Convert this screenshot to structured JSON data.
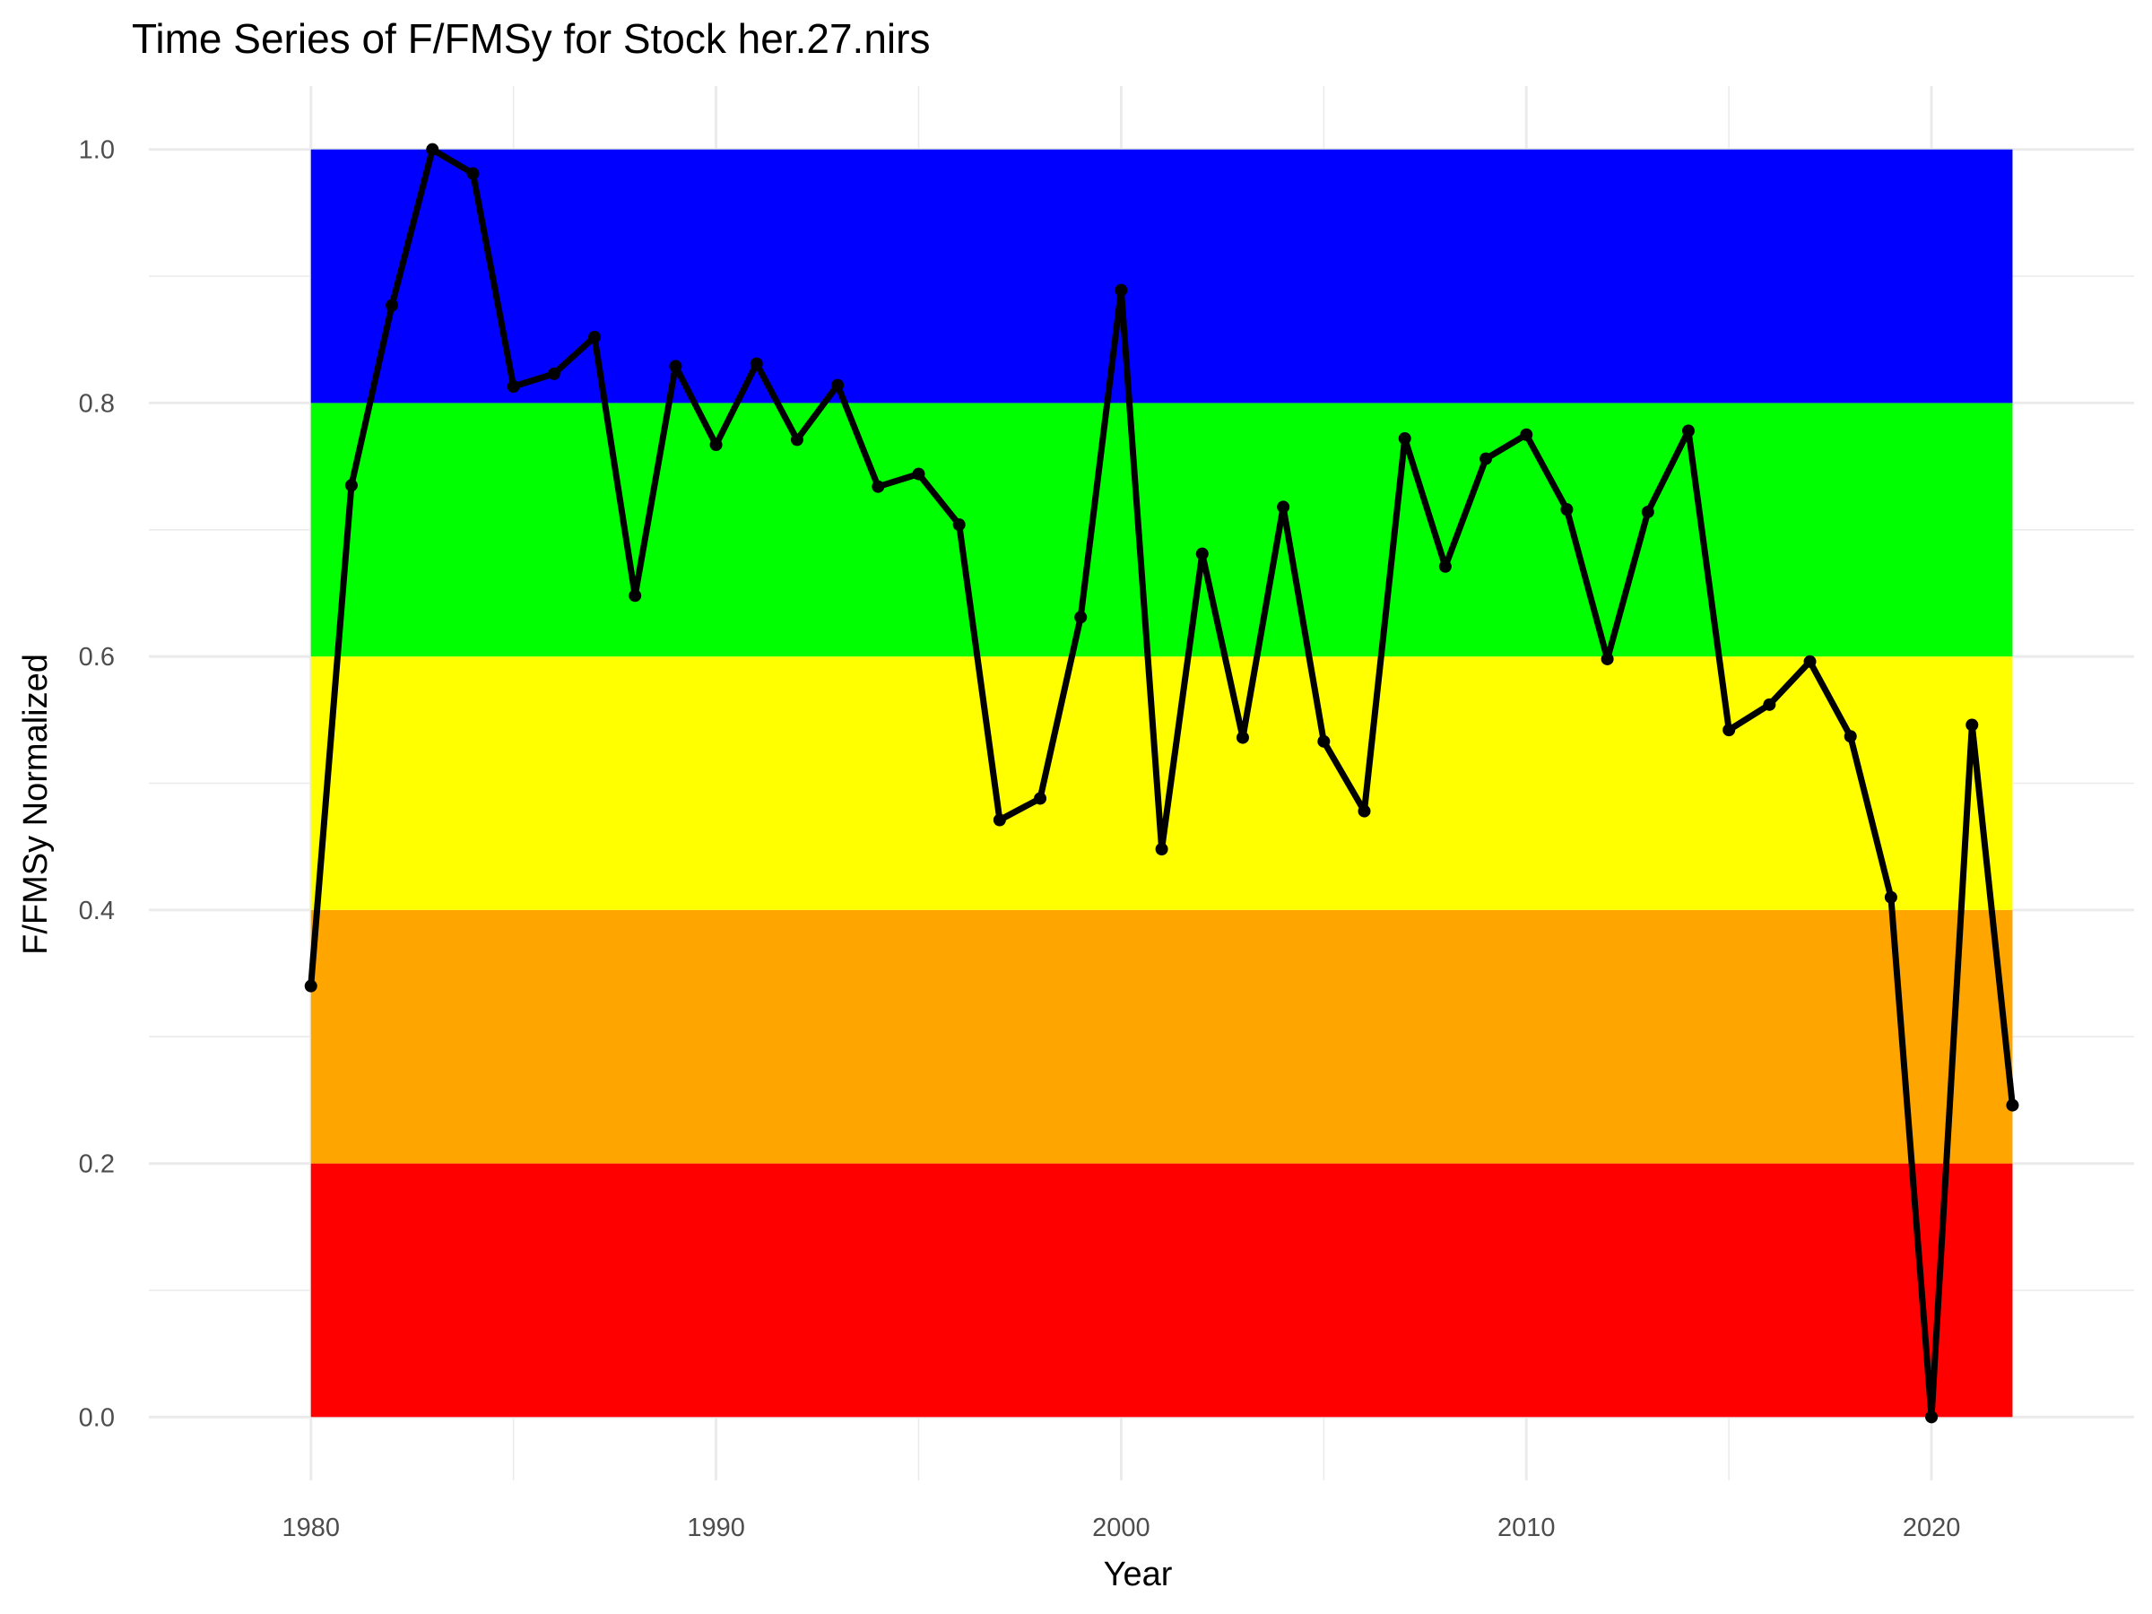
{
  "chart_data": {
    "type": "line",
    "title": "Time Series of F/FMSy for Stock her.27.nirs",
    "xlabel": "Year",
    "ylabel": "F/FMSy Normalized",
    "xlim": [
      1976,
      2025
    ],
    "ylim": [
      -0.05,
      1.05
    ],
    "x_ticks": [
      1980,
      1990,
      2000,
      2010,
      2020
    ],
    "y_ticks": [
      0.0,
      0.2,
      0.4,
      0.6,
      0.8,
      1.0
    ],
    "x_tick_labels": [
      "1980",
      "1990",
      "2000",
      "2010",
      "2020"
    ],
    "y_tick_labels": [
      "0.0",
      "0.2",
      "0.4",
      "0.6",
      "0.8",
      "1.0"
    ],
    "grid": true,
    "legend": "none",
    "bands": [
      {
        "ymin": 0.0,
        "ymax": 0.2,
        "color": "#ff0000"
      },
      {
        "ymin": 0.2,
        "ymax": 0.4,
        "color": "#ffa500"
      },
      {
        "ymin": 0.4,
        "ymax": 0.6,
        "color": "#ffff00"
      },
      {
        "ymin": 0.6,
        "ymax": 0.8,
        "color": "#00ff00"
      },
      {
        "ymin": 0.8,
        "ymax": 1.0,
        "color": "#0000ff"
      }
    ],
    "band_xrange": [
      1980,
      2022
    ],
    "line_color": "#000000",
    "x": [
      1980,
      1981,
      1982,
      1983,
      1984,
      1985,
      1986,
      1987,
      1988,
      1989,
      1990,
      1991,
      1992,
      1993,
      1994,
      1995,
      1996,
      1997,
      1998,
      1999,
      2000,
      2001,
      2002,
      2003,
      2004,
      2005,
      2006,
      2007,
      2008,
      2009,
      2010,
      2011,
      2012,
      2013,
      2014,
      2015,
      2016,
      2017,
      2018,
      2019,
      2020,
      2021,
      2022
    ],
    "y": [
      0.34,
      0.735,
      0.877,
      1.0,
      0.981,
      0.813,
      0.823,
      0.852,
      0.648,
      0.829,
      0.767,
      0.831,
      0.771,
      0.814,
      0.734,
      0.744,
      0.704,
      0.471,
      0.488,
      0.631,
      0.889,
      0.448,
      0.681,
      0.536,
      0.718,
      0.533,
      0.478,
      0.772,
      0.671,
      0.756,
      0.775,
      0.716,
      0.598,
      0.714,
      0.778,
      0.542,
      0.562,
      0.596,
      0.537,
      0.41,
      0.0,
      0.546,
      0.246
    ]
  }
}
